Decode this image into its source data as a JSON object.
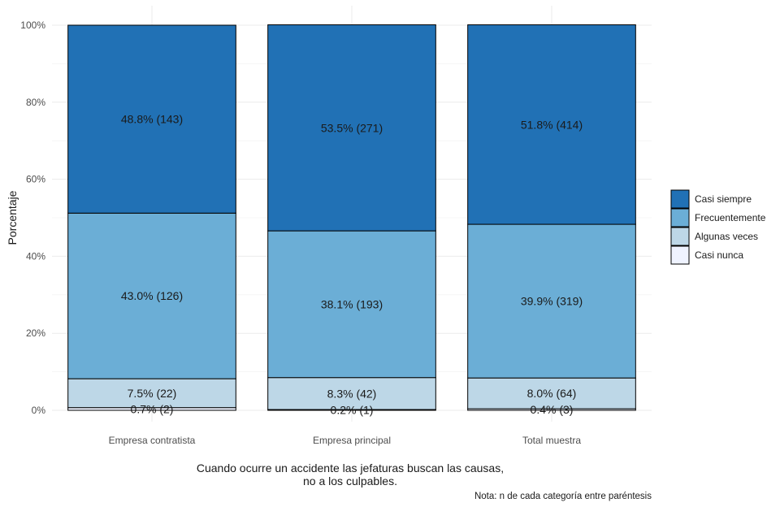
{
  "chart_data": {
    "type": "bar",
    "stacked": true,
    "percent": true,
    "categories": [
      "Empresa contratista",
      "Empresa principal",
      "Total muestra"
    ],
    "series": [
      {
        "name": "Casi nunca",
        "color": "#eff3ff",
        "values": [
          0.7,
          0.2,
          0.4
        ],
        "counts": [
          2,
          1,
          3
        ],
        "labels": [
          "0.7% (2)",
          "0.2% (1)",
          "0.4% (3)"
        ]
      },
      {
        "name": "Algunas veces",
        "color": "#bdd7e7",
        "values": [
          7.5,
          8.3,
          8.0
        ],
        "counts": [
          22,
          42,
          64
        ],
        "labels": [
          "7.5% (22)",
          "8.3% (42)",
          "8.0% (64)"
        ]
      },
      {
        "name": "Frecuentemente",
        "color": "#6baed6",
        "values": [
          43.0,
          38.1,
          39.9
        ],
        "counts": [
          126,
          193,
          319
        ],
        "labels": [
          "43.0% (126)",
          "38.1% (193)",
          "39.9% (319)"
        ]
      },
      {
        "name": "Casi siempre",
        "color": "#2171b5",
        "values": [
          48.8,
          53.5,
          51.8
        ],
        "counts": [
          143,
          271,
          414
        ],
        "labels": [
          "48.8% (143)",
          "53.5% (271)",
          "51.8% (414)"
        ]
      }
    ],
    "legend_order": [
      "Casi siempre",
      "Frecuentemente",
      "Algunas veces",
      "Casi nunca"
    ],
    "ylabel": "Porcentaje",
    "xlabel_lines": [
      "Cuando ocurre un accidente las jefaturas buscan las causas,",
      "no a los culpables."
    ],
    "y_ticks": [
      "0%",
      "20%",
      "40%",
      "60%",
      "80%",
      "100%"
    ],
    "ylim": [
      0,
      100
    ],
    "grid": true,
    "legend_position": "right",
    "caption": "Nota: n de cada categoría entre paréntesis"
  }
}
